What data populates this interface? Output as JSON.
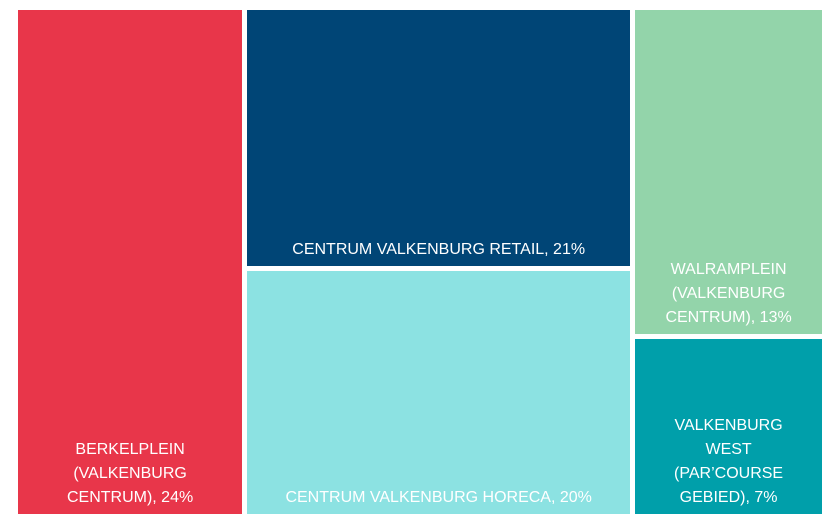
{
  "chart_data": {
    "type": "treemap",
    "categories": [
      "BERKELPLEIN (VALKENBURG CENTRUM), 24%",
      "CENTRUM VALKENBURG RETAIL, 21%",
      "CENTRUM VALKENBURG HORECA, 20%",
      "WALRAMPLEIN (VALKENBURG CENTRUM), 13%",
      "VALKENBURG WEST (PAR’COURSE GEBIED), 7%"
    ],
    "values": [
      24,
      21,
      20,
      13,
      7
    ],
    "colors": [
      "#e8364a",
      "#004576",
      "#8ce2e2",
      "#93d4aa",
      "#009faa"
    ]
  }
}
